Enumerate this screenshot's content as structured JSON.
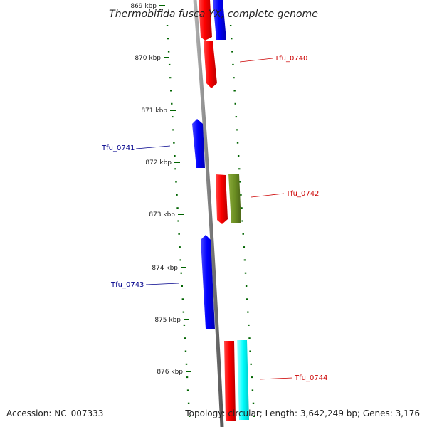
{
  "title": "Thermobifida fusca YX, complete genome",
  "footer": {
    "accession": "Accession: NC_007333",
    "summary": "Topology: circular; Length: 3,642,249 bp; Genes: 3,176"
  },
  "colors": {
    "backbone": "#909090",
    "forward_gene": "#ff0000",
    "reverse_gene": "#0000ff",
    "olive_feature": "#6b8e23",
    "cyan_feature": "#00ffff",
    "tick": "#006400",
    "label_forward": "#cc0000",
    "label_reverse": "#00008b"
  },
  "ticks": [
    {
      "label": "869 kbp"
    },
    {
      "label": "870 kbp"
    },
    {
      "label": "871 kbp"
    },
    {
      "label": "872 kbp"
    },
    {
      "label": "873 kbp"
    },
    {
      "label": "874 kbp"
    },
    {
      "label": "875 kbp"
    },
    {
      "label": "876 kbp"
    }
  ],
  "genes": [
    {
      "name": "Tfu_0740",
      "strand": "forward"
    },
    {
      "name": "Tfu_0741",
      "strand": "reverse"
    },
    {
      "name": "Tfu_0742",
      "strand": "forward"
    },
    {
      "name": "Tfu_0743",
      "strand": "reverse"
    },
    {
      "name": "Tfu_0744",
      "strand": "forward"
    }
  ]
}
